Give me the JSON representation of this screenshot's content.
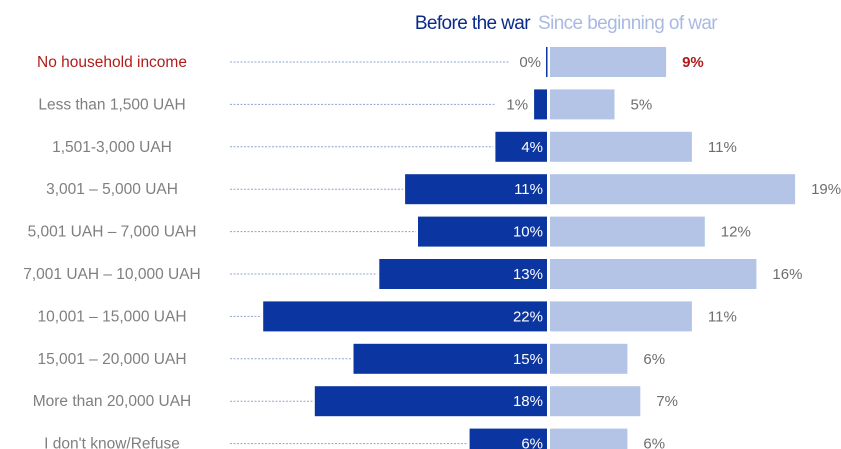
{
  "chart_data": {
    "type": "bar",
    "orientation": "horizontal-diverging",
    "legend": {
      "placement": "top",
      "items": [
        {
          "name": "Before the war",
          "color": "#0b35a0"
        },
        {
          "name": "Since beginning of war",
          "color": "#b3c4e7"
        }
      ]
    },
    "categories": [
      "No household income",
      "Less than 1,500 UAH",
      "1,501-3,000 UAH",
      "3,001 – 5,000 UAH",
      "5,001 UAH – 7,000 UAH",
      "7,001 UAH – 10,000 UAH",
      "10,001 – 15,000 UAH",
      "15,001 – 20,000 UAH",
      "More than 20,000 UAH",
      "I don't know/Refuse"
    ],
    "highlight_category_index": 0,
    "highlight_color": "#b01c1c",
    "series": [
      {
        "name": "Before the war",
        "values": [
          0,
          1,
          4,
          11,
          10,
          13,
          22,
          15,
          18,
          6
        ],
        "labels": [
          "0%",
          "1%",
          "4%",
          "11%",
          "10%",
          "13%",
          "22%",
          "15%",
          "18%",
          "6%"
        ]
      },
      {
        "name": "Since beginning of war",
        "values": [
          9,
          5,
          11,
          19,
          12,
          16,
          11,
          6,
          7,
          6
        ],
        "labels": [
          "9%",
          "5%",
          "11%",
          "19%",
          "12%",
          "16%",
          "11%",
          "6%",
          "7%",
          "6%"
        ]
      }
    ],
    "unit": "%",
    "grid": false
  }
}
